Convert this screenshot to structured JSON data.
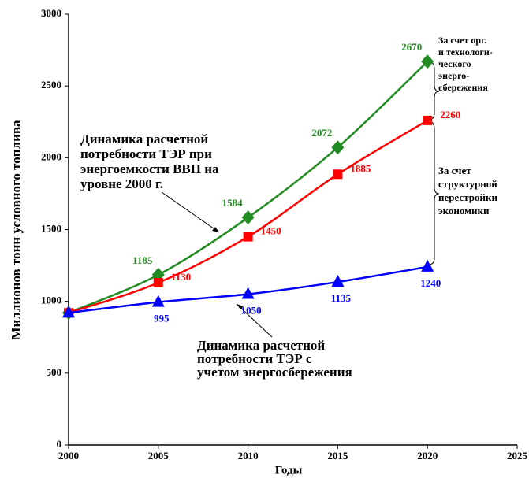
{
  "chart_data": {
    "type": "line",
    "x_label": "Годы",
    "y_label": "Миллионов тонн условного топлива",
    "x": [
      2000,
      2005,
      2010,
      2015,
      2020
    ],
    "series": [
      {
        "color": "#228b22",
        "marker": "diamond",
        "values": [
          920,
          1185,
          1584,
          2072,
          2670
        ],
        "value_labels": [
          null,
          "1185",
          "1584",
          "2072",
          "2670"
        ]
      },
      {
        "color": "#ff0000",
        "marker": "square",
        "values": [
          920,
          1130,
          1450,
          1885,
          2260
        ],
        "value_labels": [
          null,
          "1130",
          "1450",
          "1885",
          "2260"
        ]
      },
      {
        "color": "#0000ff",
        "marker": "triangle",
        "values": [
          920,
          995,
          1050,
          1135,
          1240
        ],
        "value_labels": [
          null,
          "995",
          "1050",
          "1135",
          "1240"
        ]
      }
    ],
    "xlim": [
      2000,
      2025
    ],
    "xticks": [
      2000,
      2005,
      2010,
      2015,
      2020,
      2025
    ],
    "ylim": [
      0,
      3000
    ],
    "yticks": [
      0,
      500,
      1000,
      1500,
      2000,
      2500,
      3000
    ],
    "annotations": [
      [
        "Динамика  расчетной",
        "потребности  ТЭР  при",
        "энергоемкости  ВВП  на",
        "уровне  2000  г."
      ],
      [
        "Динамика  расчетной",
        "потребности  ТЭР  с",
        "учетом энергосбережения"
      ],
      [
        "За счет орг.",
        "и технологи-",
        "ческого",
        "энерго-",
        "сбережения"
      ],
      [
        "За  счет",
        "структурной",
        "перестройки",
        "экономики"
      ]
    ]
  }
}
